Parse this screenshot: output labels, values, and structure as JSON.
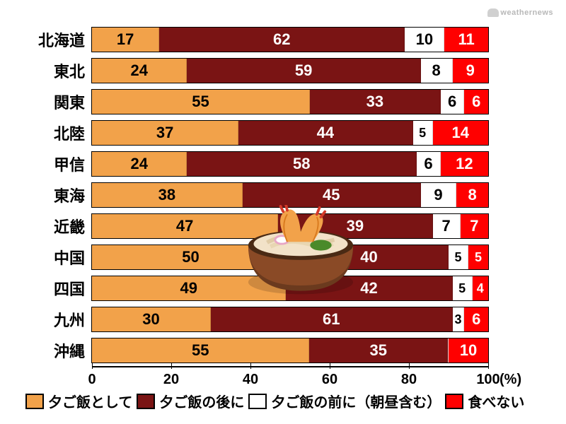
{
  "logo_text": "weathernews",
  "colors": {
    "as_dinner": "#f2a24a",
    "after_dinner": "#7a1414",
    "before_dinner": "#ffffff",
    "not_eat": "#ff0000",
    "text_light": "#ffffff",
    "text_dark": "#000000"
  },
  "legend": {
    "as_dinner": "夕ご飯として",
    "after_dinner": "夕ご飯の後に",
    "before_dinner": "夕ご飯の前に（朝昼含む）",
    "not_eat": "食べない"
  },
  "axis": {
    "ticks": [
      0,
      20,
      40,
      60,
      80,
      100
    ],
    "unit": "(%)"
  },
  "rows": [
    {
      "region": "北海道",
      "v": [
        17,
        62,
        10,
        11
      ]
    },
    {
      "region": "東北",
      "v": [
        24,
        59,
        8,
        9
      ]
    },
    {
      "region": "関東",
      "v": [
        55,
        33,
        6,
        6
      ]
    },
    {
      "region": "北陸",
      "v": [
        37,
        44,
        5,
        14
      ]
    },
    {
      "region": "甲信",
      "v": [
        24,
        58,
        6,
        12
      ]
    },
    {
      "region": "東海",
      "v": [
        38,
        45,
        9,
        8
      ]
    },
    {
      "region": "近畿",
      "v": [
        47,
        39,
        7,
        7
      ]
    },
    {
      "region": "中国",
      "v": [
        50,
        40,
        5,
        5
      ]
    },
    {
      "region": "四国",
      "v": [
        49,
        42,
        5,
        4
      ]
    },
    {
      "region": "九州",
      "v": [
        30,
        61,
        3,
        6
      ]
    },
    {
      "region": "沖縄",
      "v": [
        55,
        35,
        0,
        10
      ]
    }
  ],
  "series_text_color": [
    "#000000",
    "#ffffff",
    "#000000",
    "#ffffff"
  ]
}
